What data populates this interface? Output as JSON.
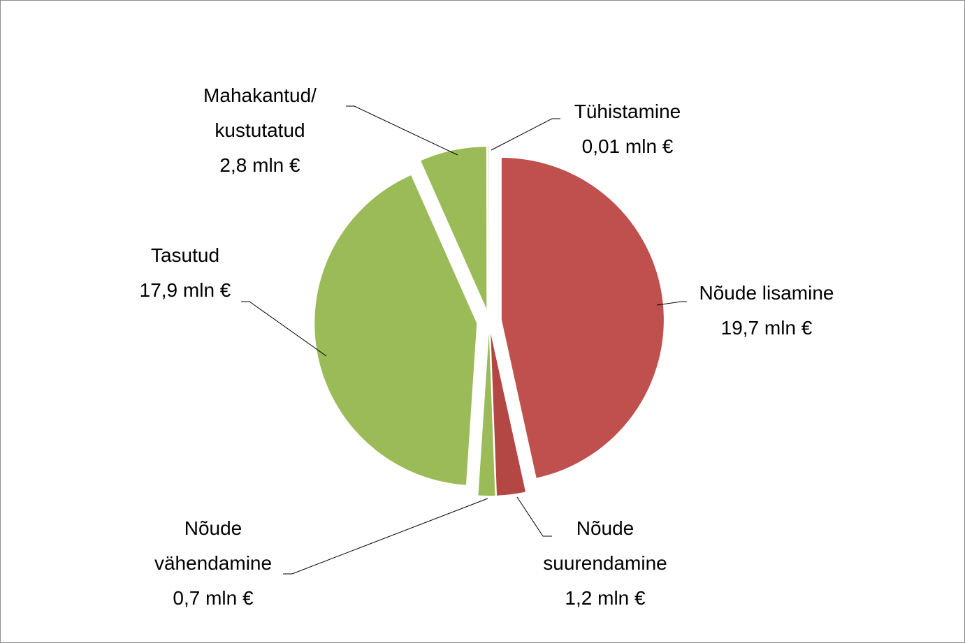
{
  "chart_data": {
    "type": "pie",
    "categories": [
      "Nõude lisamine",
      "Nõude\nsuurendamine",
      "Nõude\nvähendamine",
      "Tasutud",
      "Mahakantud/\nkustutatud",
      "Tühistamine"
    ],
    "values": [
      19.7,
      1.2,
      0.7,
      17.9,
      2.8,
      0.01
    ],
    "value_labels": [
      "19,7 mln €",
      "1,2 mln €",
      "0,7 mln €",
      "17,9 mln €",
      "2,8 mln €",
      "0,01 mln €"
    ],
    "colors": [
      "#c0504d",
      "#b24744",
      "#9bbb59",
      "#9bbb59",
      "#9bbb59",
      "#9bbb59"
    ]
  }
}
